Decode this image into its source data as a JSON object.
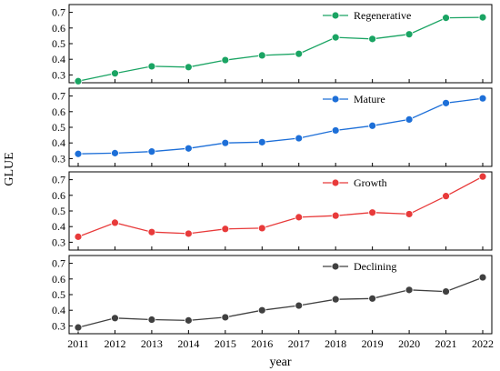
{
  "chart_data": {
    "type": "line",
    "xlabel": "year",
    "ylabel": "GLUE",
    "x": [
      2011,
      2012,
      2013,
      2014,
      2015,
      2016,
      2017,
      2018,
      2019,
      2020,
      2021,
      2022
    ],
    "legend_position": "top-right",
    "grid": false,
    "panels": [
      {
        "name": "Regenerative",
        "color": "#1aa463",
        "ylim": [
          0.25,
          0.75
        ],
        "yticks": [
          0.3,
          0.4,
          0.5,
          0.6,
          0.7
        ],
        "ytick_labels": [
          "0.3",
          "0.4",
          "0.5",
          "0.6",
          "0.7"
        ],
        "values": [
          0.26,
          0.31,
          0.355,
          0.35,
          0.395,
          0.425,
          0.435,
          0.54,
          0.53,
          0.56,
          0.665,
          0.668
        ]
      },
      {
        "name": "Mature",
        "color": "#1d6fd8",
        "ylim": [
          0.25,
          0.75
        ],
        "yticks": [
          0.3,
          0.4,
          0.5,
          0.6,
          0.7
        ],
        "ytick_labels": [
          "0.3",
          "0.4",
          "0.5",
          "0.6",
          "0.7"
        ],
        "values": [
          0.33,
          0.335,
          0.345,
          0.365,
          0.4,
          0.405,
          0.43,
          0.48,
          0.51,
          0.55,
          0.655,
          0.685
        ]
      },
      {
        "name": "Growth",
        "color": "#e83a3a",
        "ylim": [
          0.25,
          0.75
        ],
        "yticks": [
          0.3,
          0.4,
          0.5,
          0.6,
          0.7
        ],
        "ytick_labels": [
          "0.3",
          "0.4",
          "0.5",
          "0.6",
          "0.7"
        ],
        "values": [
          0.335,
          0.425,
          0.365,
          0.355,
          0.385,
          0.39,
          0.46,
          0.47,
          0.49,
          0.48,
          0.595,
          0.72
        ]
      },
      {
        "name": "Declining",
        "color": "#404040",
        "ylim": [
          0.25,
          0.75
        ],
        "yticks": [
          0.3,
          0.4,
          0.5,
          0.6,
          0.7
        ],
        "ytick_labels": [
          "0.3",
          "0.4",
          "0.5",
          "0.6",
          "0.7"
        ],
        "values": [
          0.29,
          0.35,
          0.34,
          0.335,
          0.355,
          0.4,
          0.43,
          0.47,
          0.475,
          0.53,
          0.52,
          0.61
        ]
      }
    ]
  }
}
